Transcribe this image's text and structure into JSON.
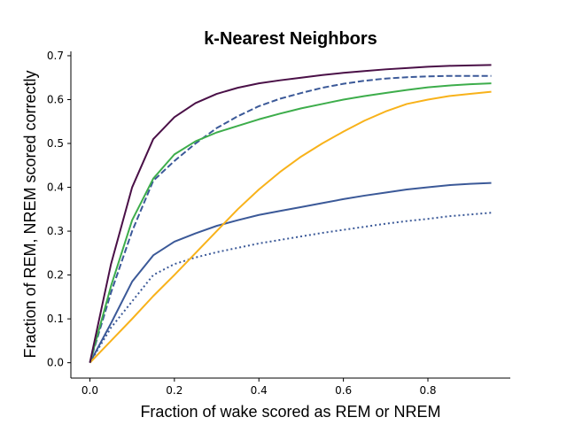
{
  "chart_data": {
    "type": "line",
    "title": "k-Nearest Neighbors",
    "xlabel": "Fraction of wake scored as REM or NREM",
    "ylabel": "Fraction of REM, NREM scored correctly",
    "xlim": [
      -0.045,
      0.995
    ],
    "ylim": [
      -0.035,
      0.71
    ],
    "xticks": [
      0.0,
      0.2,
      0.4,
      0.6,
      0.8
    ],
    "xtick_labels": [
      "0.0",
      "0.2",
      "0.4",
      "0.6",
      "0.8"
    ],
    "yticks": [
      0.0,
      0.1,
      0.2,
      0.3,
      0.4,
      0.5,
      0.6,
      0.7
    ],
    "ytick_labels": [
      "0.0",
      "0.1",
      "0.2",
      "0.3",
      "0.4",
      "0.5",
      "0.6",
      "0.7"
    ],
    "grid": false,
    "legend": "none",
    "series": [
      {
        "color": "#3b5998",
        "dash": "dotted",
        "x": [
          0.0,
          0.05,
          0.1,
          0.15,
          0.2,
          0.25,
          0.3,
          0.35,
          0.4,
          0.45,
          0.5,
          0.55,
          0.6,
          0.65,
          0.7,
          0.75,
          0.8,
          0.85,
          0.9,
          0.95
        ],
        "y": [
          0.0,
          0.08,
          0.14,
          0.2,
          0.225,
          0.24,
          0.252,
          0.262,
          0.272,
          0.28,
          0.288,
          0.296,
          0.303,
          0.31,
          0.317,
          0.323,
          0.328,
          0.334,
          0.338,
          0.342
        ]
      },
      {
        "color": "#3b5998",
        "dash": "solid",
        "x": [
          0.0,
          0.05,
          0.1,
          0.15,
          0.2,
          0.25,
          0.3,
          0.35,
          0.4,
          0.45,
          0.5,
          0.55,
          0.6,
          0.65,
          0.7,
          0.75,
          0.8,
          0.85,
          0.9,
          0.95
        ],
        "y": [
          0.0,
          0.09,
          0.185,
          0.245,
          0.276,
          0.295,
          0.312,
          0.325,
          0.337,
          0.346,
          0.355,
          0.364,
          0.373,
          0.381,
          0.388,
          0.395,
          0.4,
          0.405,
          0.408,
          0.41
        ]
      },
      {
        "color": "#f8b21a",
        "dash": "solid",
        "x": [
          0.0,
          0.05,
          0.1,
          0.15,
          0.2,
          0.25,
          0.3,
          0.35,
          0.4,
          0.45,
          0.5,
          0.55,
          0.6,
          0.65,
          0.7,
          0.75,
          0.8,
          0.85,
          0.9,
          0.95
        ],
        "y": [
          0.0,
          0.05,
          0.1,
          0.152,
          0.2,
          0.25,
          0.3,
          0.35,
          0.395,
          0.435,
          0.47,
          0.5,
          0.527,
          0.552,
          0.573,
          0.59,
          0.6,
          0.608,
          0.613,
          0.618
        ]
      },
      {
        "color": "#3b5998",
        "dash": "dashed",
        "x": [
          0.0,
          0.05,
          0.1,
          0.15,
          0.2,
          0.25,
          0.3,
          0.35,
          0.4,
          0.45,
          0.5,
          0.55,
          0.6,
          0.65,
          0.7,
          0.75,
          0.8,
          0.85,
          0.9,
          0.95
        ],
        "y": [
          0.0,
          0.16,
          0.3,
          0.415,
          0.46,
          0.5,
          0.535,
          0.562,
          0.585,
          0.602,
          0.615,
          0.627,
          0.636,
          0.643,
          0.648,
          0.651,
          0.653,
          0.654,
          0.654,
          0.654
        ]
      },
      {
        "color": "#3dad4b",
        "dash": "solid",
        "x": [
          0.0,
          0.05,
          0.1,
          0.15,
          0.2,
          0.25,
          0.3,
          0.35,
          0.4,
          0.45,
          0.5,
          0.55,
          0.6,
          0.65,
          0.7,
          0.75,
          0.8,
          0.85,
          0.9,
          0.95
        ],
        "y": [
          0.0,
          0.175,
          0.325,
          0.42,
          0.475,
          0.505,
          0.525,
          0.54,
          0.555,
          0.568,
          0.58,
          0.59,
          0.6,
          0.608,
          0.615,
          0.622,
          0.628,
          0.632,
          0.635,
          0.637
        ]
      },
      {
        "color": "#4a1047",
        "dash": "solid",
        "x": [
          0.0,
          0.05,
          0.1,
          0.15,
          0.2,
          0.25,
          0.3,
          0.35,
          0.4,
          0.45,
          0.5,
          0.55,
          0.6,
          0.65,
          0.7,
          0.75,
          0.8,
          0.85,
          0.9,
          0.95
        ],
        "y": [
          0.0,
          0.225,
          0.4,
          0.51,
          0.56,
          0.592,
          0.613,
          0.627,
          0.637,
          0.644,
          0.65,
          0.656,
          0.661,
          0.665,
          0.669,
          0.672,
          0.675,
          0.677,
          0.678,
          0.679
        ]
      }
    ]
  }
}
